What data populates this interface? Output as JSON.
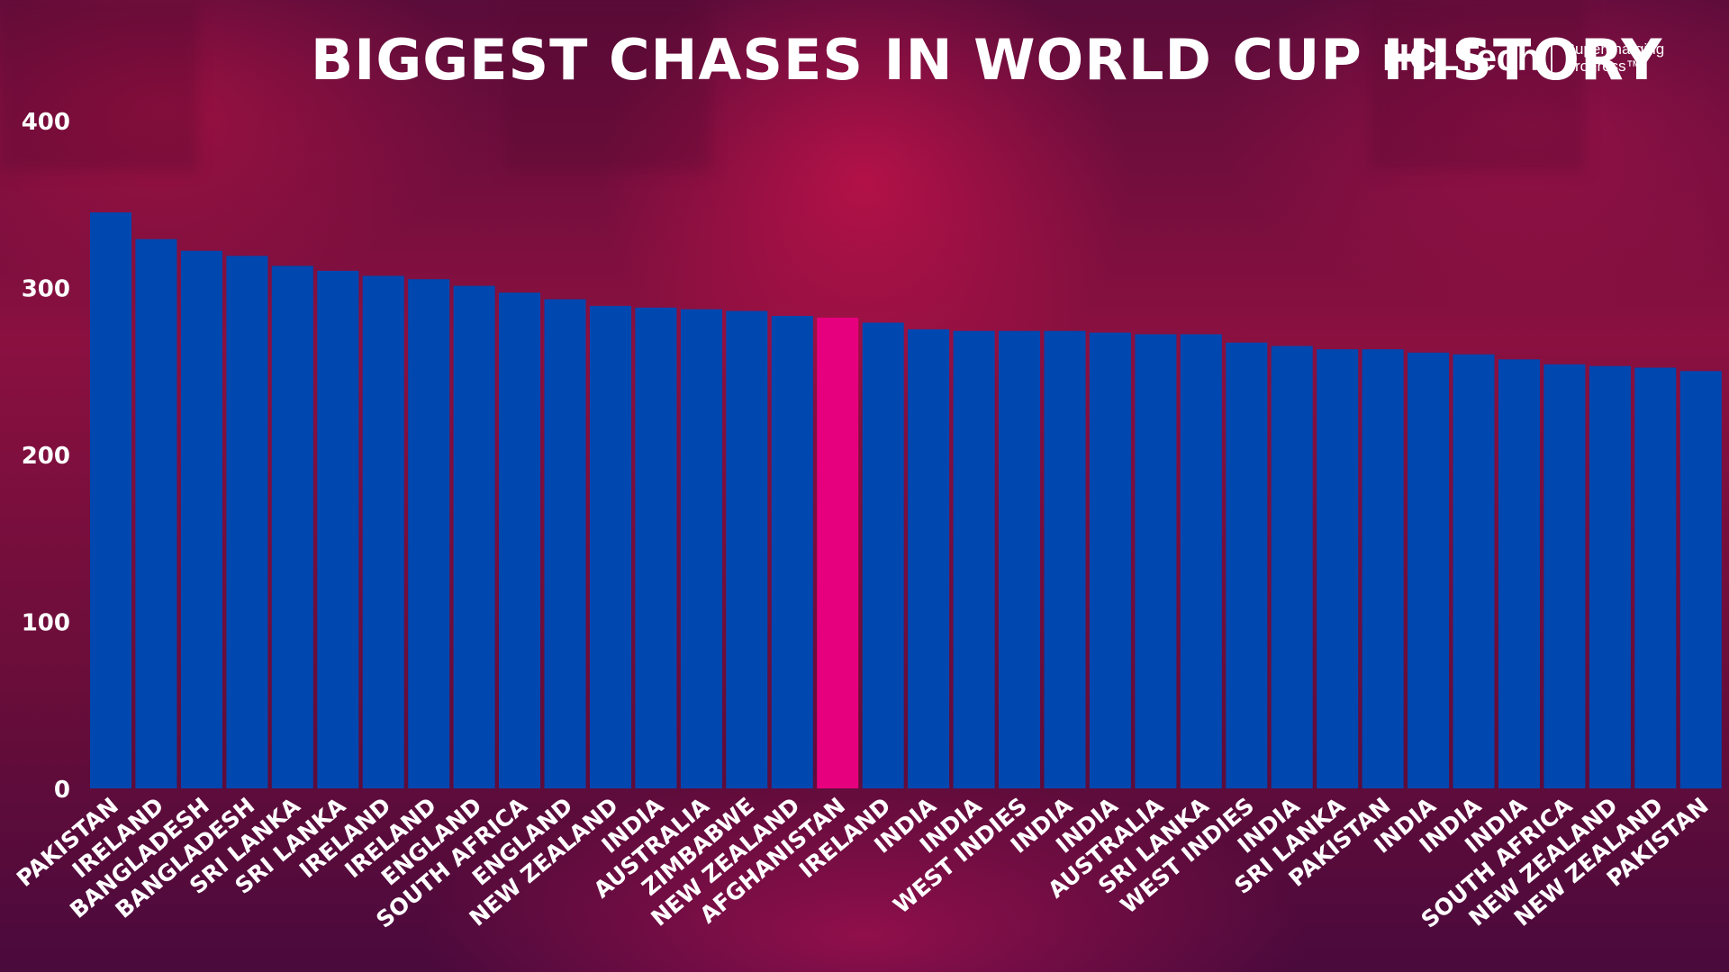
{
  "title": "BIGGEST CHASES IN WORLD CUP HISTORY",
  "brand": {
    "name": "HCLTech",
    "tagline_line1": "Supercharging",
    "tagline_line2": "Progress™"
  },
  "colors": {
    "bar": "#0047b0",
    "highlight": "#e6007e",
    "text": "#ffffff"
  },
  "chart_data": {
    "type": "bar",
    "title": "BIGGEST CHASES IN WORLD CUP HISTORY",
    "xlabel": "",
    "ylabel": "",
    "ylim": [
      0,
      400
    ],
    "yticks": [
      0,
      100,
      200,
      300,
      400
    ],
    "grid": false,
    "categories": [
      "PAKISTAN",
      "IRELAND",
      "BANGLADESH",
      "BANGLADESH",
      "SRI LANKA",
      "SRI LANKA",
      "IRELAND",
      "IRELAND",
      "ENGLAND",
      "SOUTH AFRICA",
      "ENGLAND",
      "NEW ZEALAND",
      "INDIA",
      "AUSTRALIA",
      "ZIMBABWE",
      "NEW ZEALAND",
      "AFGHANISTAN",
      "IRELAND",
      "INDIA",
      "INDIA",
      "WEST INDIES",
      "INDIA",
      "INDIA",
      "AUSTRALIA",
      "SRI LANKA",
      "WEST INDIES",
      "INDIA",
      "SRI LANKA",
      "PAKISTAN",
      "INDIA",
      "INDIA",
      "INDIA",
      "SOUTH AFRICA",
      "NEW ZEALAND",
      "NEW ZEALAND",
      "PAKISTAN"
    ],
    "values": [
      345,
      329,
      322,
      319,
      313,
      310,
      307,
      305,
      301,
      297,
      293,
      289,
      288,
      287,
      286,
      283,
      282,
      279,
      275,
      274,
      274,
      274,
      273,
      272,
      272,
      267,
      265,
      263,
      263,
      261,
      260,
      257,
      254,
      253,
      252,
      250
    ],
    "highlight_index": 16
  }
}
